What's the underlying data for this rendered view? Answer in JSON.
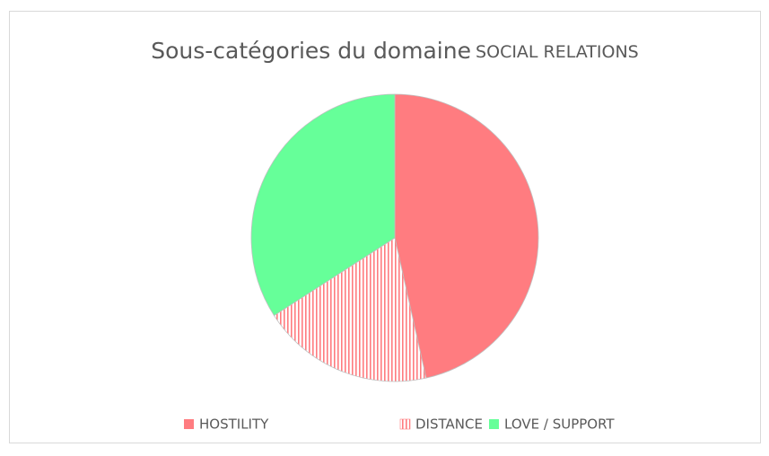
{
  "chart_data": {
    "type": "pie",
    "title": [
      "Sous-catégories du domaine",
      "SOCIAL RELATIONS"
    ],
    "categories": [
      "HOSTILITY",
      "DISTANCE",
      "LOVE / SUPPORT"
    ],
    "values": [
      46.5,
      19.4,
      34.1
    ],
    "colors": [
      "#ff7c80",
      "#ff7c80",
      "#66ff99"
    ],
    "patterns": [
      null,
      "vertical-stripes",
      null
    ],
    "legend": "bottom"
  }
}
